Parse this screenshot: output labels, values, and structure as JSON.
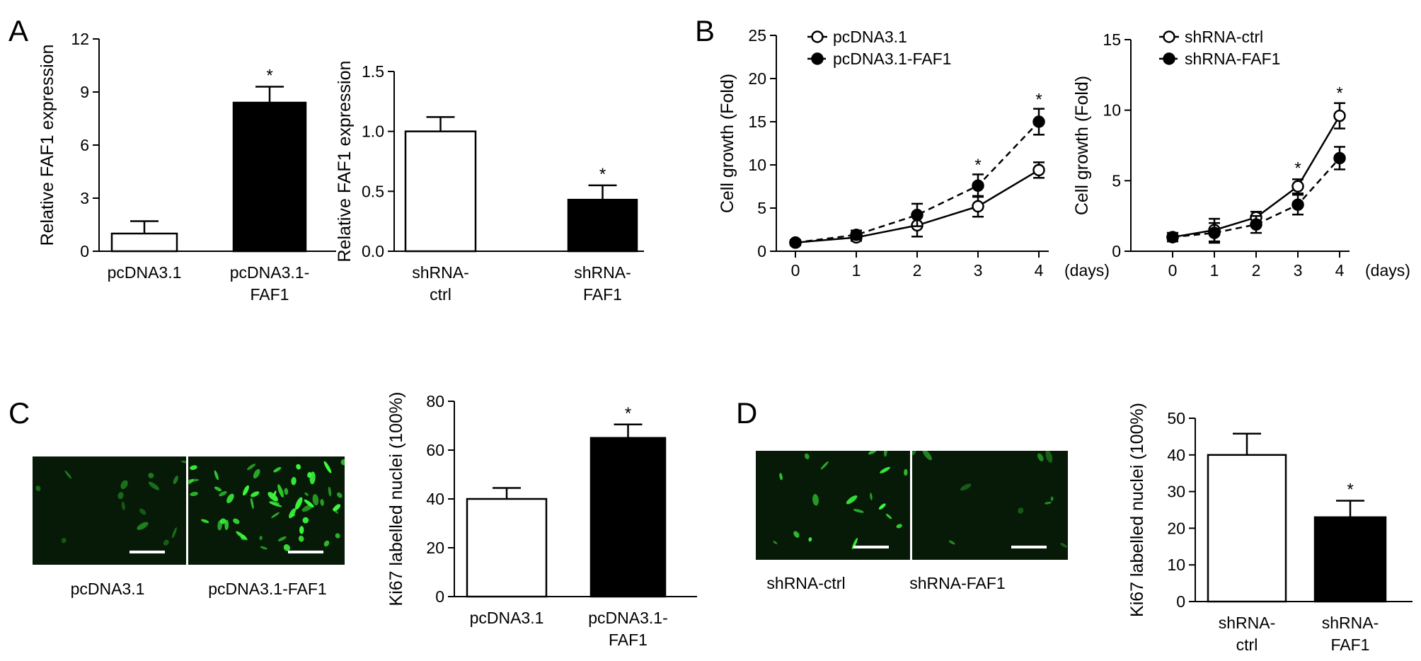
{
  "panel_labels": [
    "A",
    "B",
    "C",
    "D"
  ],
  "axis_unit_days": "(days)",
  "micro_captions": {
    "C": [
      "pcDNA3.1",
      "pcDNA3.1-FAF1"
    ],
    "D": [
      "shRNA-ctrl",
      "shRNA-FAF1"
    ]
  },
  "colors": {
    "fill_control": "#ffffff",
    "fill_treated": "#000000",
    "micro_bright": "#3dff3d",
    "micro_bg": "#071a07",
    "scale_bar": "#ffffff"
  },
  "chart_data": [
    {
      "id": "A1",
      "type": "bar",
      "ylabel": "Relative FAF1 expression",
      "ylim": [
        0,
        12
      ],
      "yticks": [
        "0",
        "3",
        "6",
        "9",
        "12"
      ],
      "categories": [
        [
          "pcDNA3.1"
        ],
        [
          "pcDNA3.1-",
          "FAF1"
        ]
      ],
      "values": [
        1.0,
        8.4
      ],
      "errors": [
        0.7,
        0.9
      ],
      "fills": [
        "white",
        "black"
      ],
      "significance": [
        "",
        "*"
      ]
    },
    {
      "id": "A2",
      "type": "bar",
      "ylabel": "Relative FAF1 expression",
      "ylim": [
        0,
        1.5
      ],
      "yticks": [
        "0.0",
        "0.5",
        "1.0",
        "1.5"
      ],
      "categories": [
        [
          "shRNA-",
          "ctrl"
        ],
        [
          "shRNA-",
          "FAF1"
        ]
      ],
      "values": [
        1.0,
        0.43
      ],
      "errors": [
        0.12,
        0.12
      ],
      "fills": [
        "white",
        "black"
      ],
      "significance": [
        "",
        "*"
      ]
    },
    {
      "id": "B1",
      "type": "line",
      "ylabel": "Cell growth (Fold)",
      "ylim": [
        0,
        25
      ],
      "yticks": [
        "0",
        "5",
        "10",
        "15",
        "20",
        "25"
      ],
      "x": [
        0,
        1,
        2,
        3,
        4
      ],
      "xticks": [
        "0",
        "1",
        "2",
        "3",
        "4"
      ],
      "xunit": "(days)",
      "series": [
        {
          "name": "pcDNA3.1",
          "marker": "open",
          "dash": "solid",
          "values": [
            1.0,
            1.6,
            3.0,
            5.2,
            9.4
          ],
          "errors": [
            0.3,
            0.4,
            1.3,
            1.2,
            0.9
          ]
        },
        {
          "name": "pcDNA3.1-FAF1",
          "marker": "filled",
          "dash": "dashed",
          "values": [
            1.0,
            1.9,
            4.2,
            7.6,
            15.0
          ],
          "errors": [
            0.3,
            0.5,
            1.3,
            1.3,
            1.5
          ]
        }
      ],
      "significance_x": [
        3,
        4
      ],
      "significance_at": [
        9.0,
        16.6
      ]
    },
    {
      "id": "B2",
      "type": "line",
      "ylabel": "Cell growth (Fold)",
      "ylim": [
        0,
        15
      ],
      "yticks": [
        "0",
        "5",
        "10",
        "15"
      ],
      "x": [
        0,
        1,
        2,
        3,
        4
      ],
      "xticks": [
        "0",
        "1",
        "2",
        "3",
        "4"
      ],
      "xunit": "(days)",
      "series": [
        {
          "name": "shRNA-ctrl",
          "marker": "open",
          "dash": "solid",
          "values": [
            1.0,
            1.5,
            2.4,
            4.6,
            9.6
          ],
          "errors": [
            0.3,
            0.8,
            0.4,
            0.5,
            0.9
          ]
        },
        {
          "name": "shRNA-FAF1",
          "marker": "filled",
          "dash": "dashed",
          "values": [
            1.0,
            1.3,
            1.9,
            3.3,
            6.6
          ],
          "errors": [
            0.3,
            0.7,
            0.6,
            0.7,
            0.8
          ]
        }
      ],
      "significance_x": [
        3,
        4
      ],
      "significance_at": [
        5.3,
        10.6
      ]
    },
    {
      "id": "C",
      "type": "bar",
      "ylabel": "Ki67 labelled nuclei (100%)",
      "ylim": [
        0,
        80
      ],
      "yticks": [
        "0",
        "20",
        "40",
        "60",
        "80"
      ],
      "categories": [
        [
          "pcDNA3.1"
        ],
        [
          "pcDNA3.1-",
          "FAF1"
        ]
      ],
      "values": [
        40,
        65
      ],
      "errors": [
        4.5,
        5.5
      ],
      "fills": [
        "white",
        "black"
      ],
      "significance": [
        "",
        "*"
      ]
    },
    {
      "id": "D",
      "type": "bar",
      "ylabel": "Ki67 labelled nuclei (100%)",
      "ylim": [
        0,
        50
      ],
      "yticks": [
        "0",
        "10",
        "20",
        "30",
        "40",
        "50"
      ],
      "categories": [
        [
          "shRNA-",
          "ctrl"
        ],
        [
          "shRNA-",
          "FAF1"
        ]
      ],
      "values": [
        40,
        23
      ],
      "errors": [
        5.8,
        4.5
      ],
      "fills": [
        "white",
        "black"
      ],
      "significance": [
        "",
        "*"
      ]
    }
  ]
}
